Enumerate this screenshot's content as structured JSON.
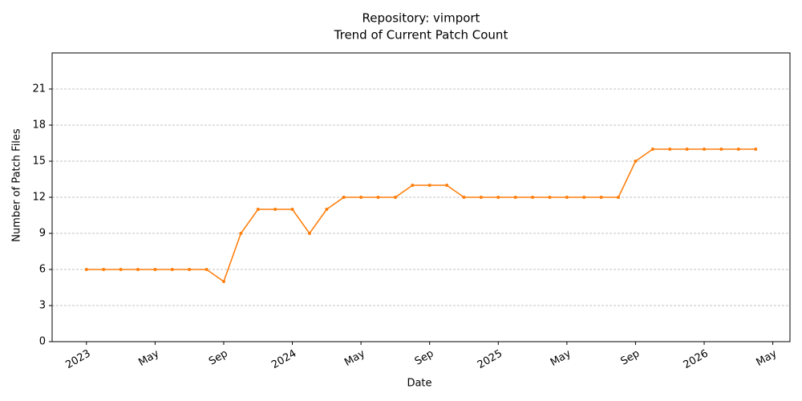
{
  "chart_data": {
    "type": "line",
    "title": [
      "Repository: vimport",
      "Trend of Current Patch Count"
    ],
    "xlabel": "Date",
    "ylabel": "Number of Patch Files",
    "x": [
      "2023-01",
      "2023-02",
      "2023-03",
      "2023-04",
      "2023-05",
      "2023-06",
      "2023-07",
      "2023-08",
      "2023-09",
      "2023-10",
      "2023-11",
      "2023-12",
      "2024-01",
      "2024-02",
      "2024-03",
      "2024-04",
      "2024-05",
      "2024-06",
      "2024-07",
      "2024-08",
      "2024-09",
      "2024-10",
      "2024-11",
      "2024-12",
      "2025-01",
      "2025-02",
      "2025-03",
      "2025-04",
      "2025-05",
      "2025-06",
      "2025-07",
      "2025-08",
      "2025-09",
      "2025-10",
      "2025-11",
      "2025-12",
      "2026-01",
      "2026-02",
      "2026-03",
      "2026-04"
    ],
    "series": [
      {
        "name": "Current Patch Count",
        "color": "#ff7f0e",
        "values": [
          6,
          6,
          6,
          6,
          6,
          6,
          6,
          6,
          5,
          9,
          11,
          11,
          11,
          9,
          11,
          12,
          12,
          12,
          12,
          13,
          13,
          13,
          12,
          12,
          12,
          12,
          12,
          12,
          12,
          12,
          12,
          12,
          15,
          16,
          16,
          16,
          16,
          16,
          16,
          16
        ]
      }
    ],
    "xlim": [
      "2022-11",
      "2026-06"
    ],
    "xticks": [
      {
        "value": "2023-01",
        "label": "2023"
      },
      {
        "value": "2023-05",
        "label": "May"
      },
      {
        "value": "2023-09",
        "label": "Sep"
      },
      {
        "value": "2024-01",
        "label": "2024"
      },
      {
        "value": "2024-05",
        "label": "May"
      },
      {
        "value": "2024-09",
        "label": "Sep"
      },
      {
        "value": "2025-01",
        "label": "2025"
      },
      {
        "value": "2025-05",
        "label": "May"
      },
      {
        "value": "2025-09",
        "label": "Sep"
      },
      {
        "value": "2026-01",
        "label": "2026"
      },
      {
        "value": "2026-05",
        "label": "May"
      }
    ],
    "ylim": [
      0,
      24
    ],
    "yticks": [
      0,
      3,
      6,
      9,
      12,
      15,
      18,
      21
    ],
    "grid": true
  }
}
